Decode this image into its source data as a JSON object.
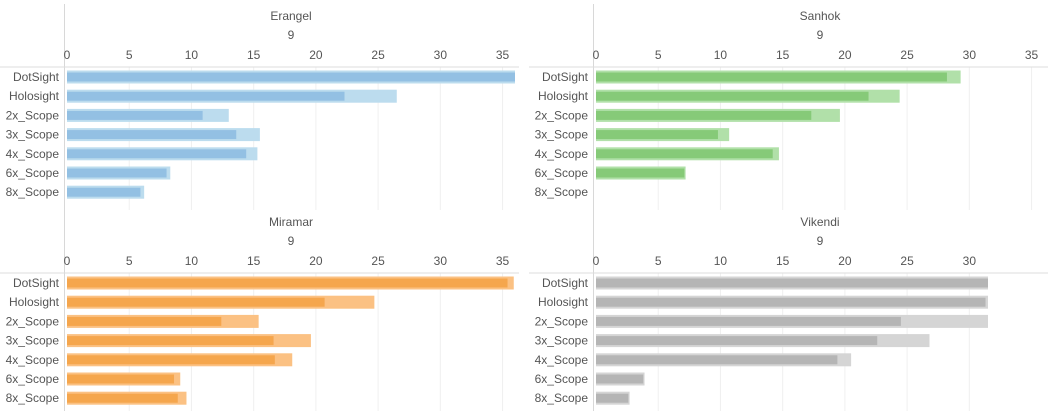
{
  "chart_data": [
    {
      "type": "bar",
      "title": "Erangel",
      "subtitle": "9",
      "categories": [
        "DotSight",
        "Holosight",
        "2x_Scope",
        "3x_Scope",
        "4x_Scope",
        "6x_Scope",
        "8x_Scope"
      ],
      "xticks": [
        0,
        5,
        10,
        15,
        20,
        25,
        30,
        35
      ],
      "xlim": [
        0,
        36
      ],
      "series": [
        {
          "values": [
            36,
            26.5,
            13,
            15.5,
            15.3,
            8.3,
            6.2
          ]
        },
        {
          "values": [
            36,
            22.3,
            10.9,
            13.6,
            14.4,
            8.0,
            5.9
          ]
        }
      ],
      "colors": {
        "light": "#bcdcee",
        "dark": "#93c0e3"
      }
    },
    {
      "type": "bar",
      "title": "Sanhok",
      "subtitle": "9",
      "categories": [
        "DotSight",
        "Holosight",
        "2x_Scope",
        "3x_Scope",
        "4x_Scope",
        "6x_Scope",
        "8x_Scope"
      ],
      "xticks": [
        0,
        5,
        10,
        15,
        20,
        25,
        30,
        35
      ],
      "xlim": [
        0,
        36
      ],
      "series": [
        {
          "values": [
            29.3,
            24.4,
            19.6,
            10.7,
            14.7,
            7.2,
            0
          ]
        },
        {
          "values": [
            28.2,
            21.9,
            17.3,
            9.8,
            14.2,
            7.1,
            0
          ]
        }
      ],
      "colors": {
        "light": "#b1e0a9",
        "dark": "#86ca78"
      }
    },
    {
      "type": "bar",
      "title": "Miramar",
      "subtitle": "9",
      "categories": [
        "DotSight",
        "Holosight",
        "2x_Scope",
        "3x_Scope",
        "4x_Scope",
        "6x_Scope",
        "8x_Scope"
      ],
      "xticks": [
        0,
        5,
        10,
        15,
        20,
        25,
        30,
        35
      ],
      "xlim": [
        0,
        36
      ],
      "series": [
        {
          "values": [
            35.9,
            24.7,
            15.4,
            19.6,
            18.1,
            9.1,
            9.6
          ]
        },
        {
          "values": [
            35.4,
            20.7,
            12.4,
            16.6,
            16.7,
            8.6,
            8.9
          ]
        }
      ],
      "colors": {
        "light": "#fbc183",
        "dark": "#f5a64d"
      }
    },
    {
      "type": "bar",
      "title": "Vikendi",
      "subtitle": "9",
      "categories": [
        "DotSight",
        "Holosight",
        "2x_Scope",
        "3x_Scope",
        "4x_Scope",
        "6x_Scope",
        "8x_Scope"
      ],
      "xticks": [
        0,
        5,
        10,
        15,
        20,
        25,
        30
      ],
      "xlim": [
        0,
        36
      ],
      "series": [
        {
          "values": [
            31.5,
            31.5,
            31.5,
            26.8,
            20.5,
            3.9,
            2.7
          ]
        },
        {
          "values": [
            31.5,
            31.3,
            24.5,
            22.6,
            19.4,
            3.8,
            2.6
          ]
        }
      ],
      "colors": {
        "light": "#d5d5d5",
        "dark": "#b5b5b5"
      }
    }
  ]
}
